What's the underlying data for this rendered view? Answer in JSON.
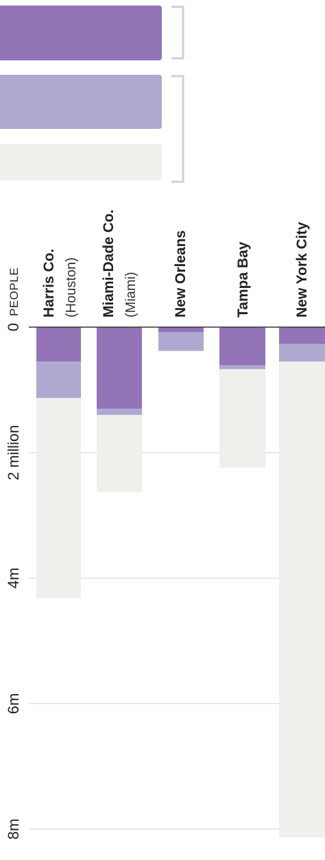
{
  "chart_data": {
    "type": "bar",
    "stacked": true,
    "orientation": "vertical-rotated",
    "unit_label": "PEOPLE",
    "title": "",
    "ylim": [
      0,
      8000000
    ],
    "y_ticks": [
      {
        "value": 0,
        "label": "0"
      },
      {
        "value": 2000000,
        "label": "2 million"
      },
      {
        "value": 4000000,
        "label": "4m"
      },
      {
        "value": 6000000,
        "label": "6m"
      },
      {
        "value": 8000000,
        "label": "8m"
      }
    ],
    "categories": [
      {
        "name": "Harris Co.",
        "sub": "(Houston)"
      },
      {
        "name": "Miami-Dade Co.",
        "sub": "(Miami)"
      },
      {
        "name": "New Orleans",
        "sub": ""
      },
      {
        "name": "Tampa Bay",
        "sub": ""
      },
      {
        "name": "New York City",
        "sub": ""
      }
    ],
    "series": [
      {
        "color": "#9374b7",
        "values": [
          550000,
          1300000,
          80000,
          610000,
          270000
        ]
      },
      {
        "color": "#afa9d1",
        "values": [
          580000,
          100000,
          300000,
          60000,
          280000
        ]
      },
      {
        "color": "#f0efeb",
        "values": [
          3190000,
          1230000,
          0,
          1570000,
          7580000
        ]
      }
    ],
    "gridlines": true,
    "colors": {
      "dark": "#9374b7",
      "medium": "#afa9d1",
      "light": "#f0efeb",
      "grid": "#d2d2d2",
      "bracket": "#cfcfcf",
      "axis": "#333333"
    }
  }
}
